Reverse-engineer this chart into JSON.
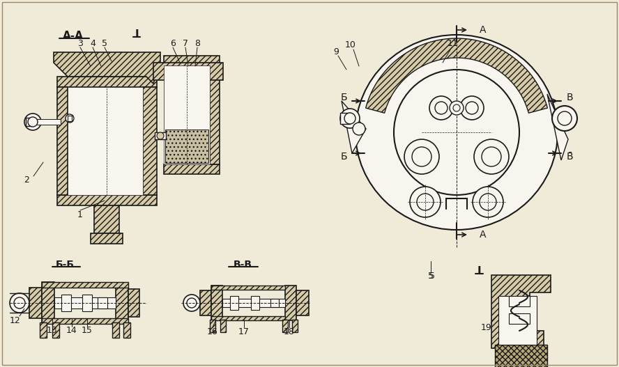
{
  "bg_color": "#f0ead8",
  "line_color": "#1a1a1a",
  "hatch_fc": "#d8cba8",
  "white": "#f8f5ee",
  "figsize": [
    8.88,
    5.27
  ],
  "dpi": 100,
  "labels": {
    "AA": "А-А",
    "BB": "Б-Б",
    "VV": "В-В",
    "A": "А",
    "B": "Б",
    "V": "В",
    "Vbar": "В̄",
    "I_label": "I",
    "nums": [
      "1",
      "2",
      "3",
      "4",
      "5",
      "6",
      "7",
      "8",
      "9",
      "10",
      "11",
      "12",
      "13",
      "14",
      "15",
      "16",
      "17",
      "18",
      "19"
    ]
  }
}
